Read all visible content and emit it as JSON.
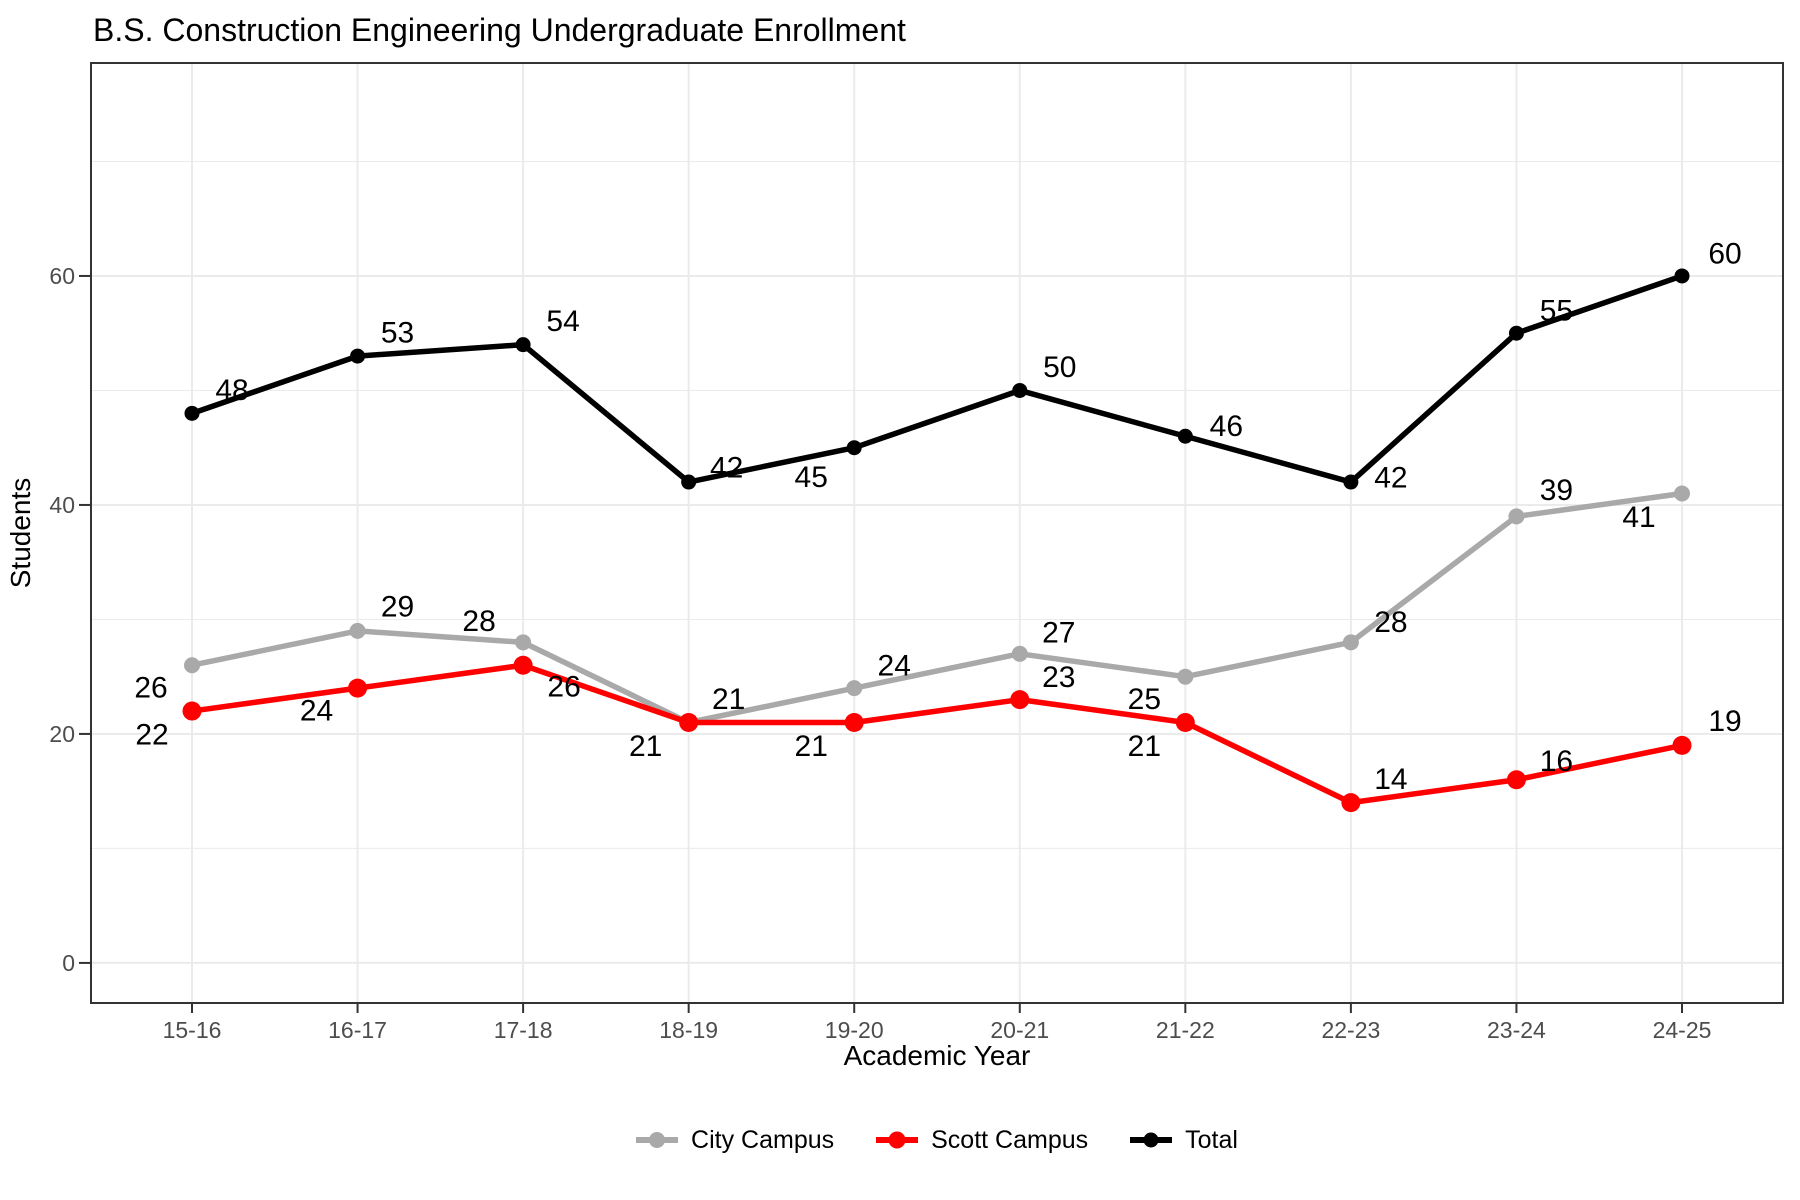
{
  "title": "B.S. Construction Engineering Undergraduate Enrollment",
  "chart_data": {
    "type": "line",
    "title": "B.S. Construction Engineering Undergraduate Enrollment",
    "xlabel": "Academic Year",
    "ylabel": "Students",
    "categories": [
      "15-16",
      "16-17",
      "17-18",
      "18-19",
      "19-20",
      "20-21",
      "21-22",
      "22-23",
      "23-24",
      "24-25"
    ],
    "y_ticks": [
      0,
      20,
      40,
      60
    ],
    "y_minor_ticks": [
      10,
      30,
      50,
      70
    ],
    "ylim": [
      -3.5,
      78.6
    ],
    "grid": true,
    "legend_position": "bottom",
    "point_labels_shown": true,
    "colors": {
      "grid_major": "#EBEBEB",
      "grid_minor": "#EBEBEB",
      "panel_border": "#333333",
      "tick_mark": "#333333",
      "tick_text": "#4D4D4D",
      "text": "#000000",
      "background": "#FFFFFF"
    },
    "series": [
      {
        "name": "City Campus",
        "color": "#A9A9A9",
        "point_radius": 8,
        "values": [
          26,
          29,
          28,
          21,
          24,
          27,
          25,
          28,
          39,
          41
        ],
        "label_offsets": [
          [
            -41,
            23
          ],
          [
            40,
            -24
          ],
          [
            -44,
            -21
          ],
          [
            40,
            -23
          ],
          [
            40,
            -22
          ],
          [
            39,
            -21
          ],
          [
            -41,
            23
          ],
          [
            40,
            -20
          ],
          [
            40,
            -26
          ],
          [
            -43,
            24
          ]
        ]
      },
      {
        "name": "Scott Campus",
        "color": "#FF0000",
        "point_radius": 9.5,
        "values": [
          22,
          24,
          26,
          21,
          21,
          23,
          21,
          14,
          16,
          19
        ],
        "label_offsets": [
          [
            -40,
            24
          ],
          [
            -41,
            23
          ],
          [
            41,
            22
          ],
          [
            -43,
            24
          ],
          [
            -43,
            24
          ],
          [
            39,
            -22
          ],
          [
            -41,
            24
          ],
          [
            40,
            -23
          ],
          [
            40,
            -18
          ],
          [
            43,
            -24
          ]
        ]
      },
      {
        "name": "Total",
        "color": "#000000",
        "point_radius": 7.5,
        "values": [
          48,
          53,
          54,
          42,
          45,
          50,
          46,
          42,
          55,
          60
        ],
        "label_offsets": [
          [
            40,
            -23
          ],
          [
            40,
            -23
          ],
          [
            40,
            -23
          ],
          [
            38,
            -14
          ],
          [
            -43,
            30
          ],
          [
            40,
            -23
          ],
          [
            41,
            -10
          ],
          [
            40,
            -4
          ],
          [
            40,
            -22
          ],
          [
            43,
            -22
          ]
        ]
      }
    ]
  }
}
